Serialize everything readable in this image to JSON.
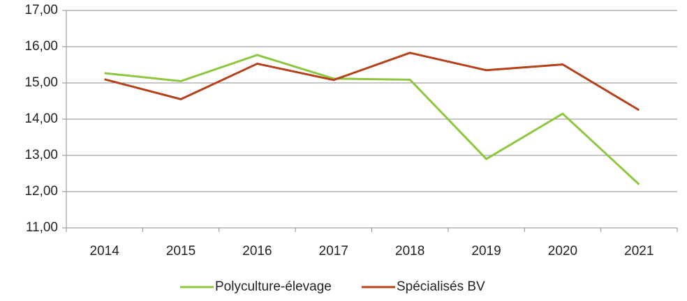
{
  "chart_data": {
    "type": "line",
    "categories": [
      "2014",
      "2015",
      "2016",
      "2017",
      "2018",
      "2019",
      "2020",
      "2021"
    ],
    "series": [
      {
        "name": "Polyculture-élevage",
        "color": "#8dc63f",
        "values": [
          15.27,
          15.05,
          15.77,
          15.12,
          15.09,
          12.9,
          14.15,
          12.2
        ]
      },
      {
        "name": "Spécialisés BV",
        "color": "#b5401a",
        "values": [
          15.1,
          14.55,
          15.53,
          15.08,
          15.83,
          15.35,
          15.51,
          14.25
        ]
      }
    ],
    "ylim": [
      11,
      17
    ],
    "yticks": [
      {
        "value": 11,
        "label": "11,00"
      },
      {
        "value": 12,
        "label": "12,00"
      },
      {
        "value": 13,
        "label": "13,00"
      },
      {
        "value": 14,
        "label": "14,00"
      },
      {
        "value": 15,
        "label": "15,00"
      },
      {
        "value": 16,
        "label": "16,00"
      },
      {
        "value": 17,
        "label": "17,00"
      }
    ],
    "grid": true,
    "legend": "bottom"
  }
}
